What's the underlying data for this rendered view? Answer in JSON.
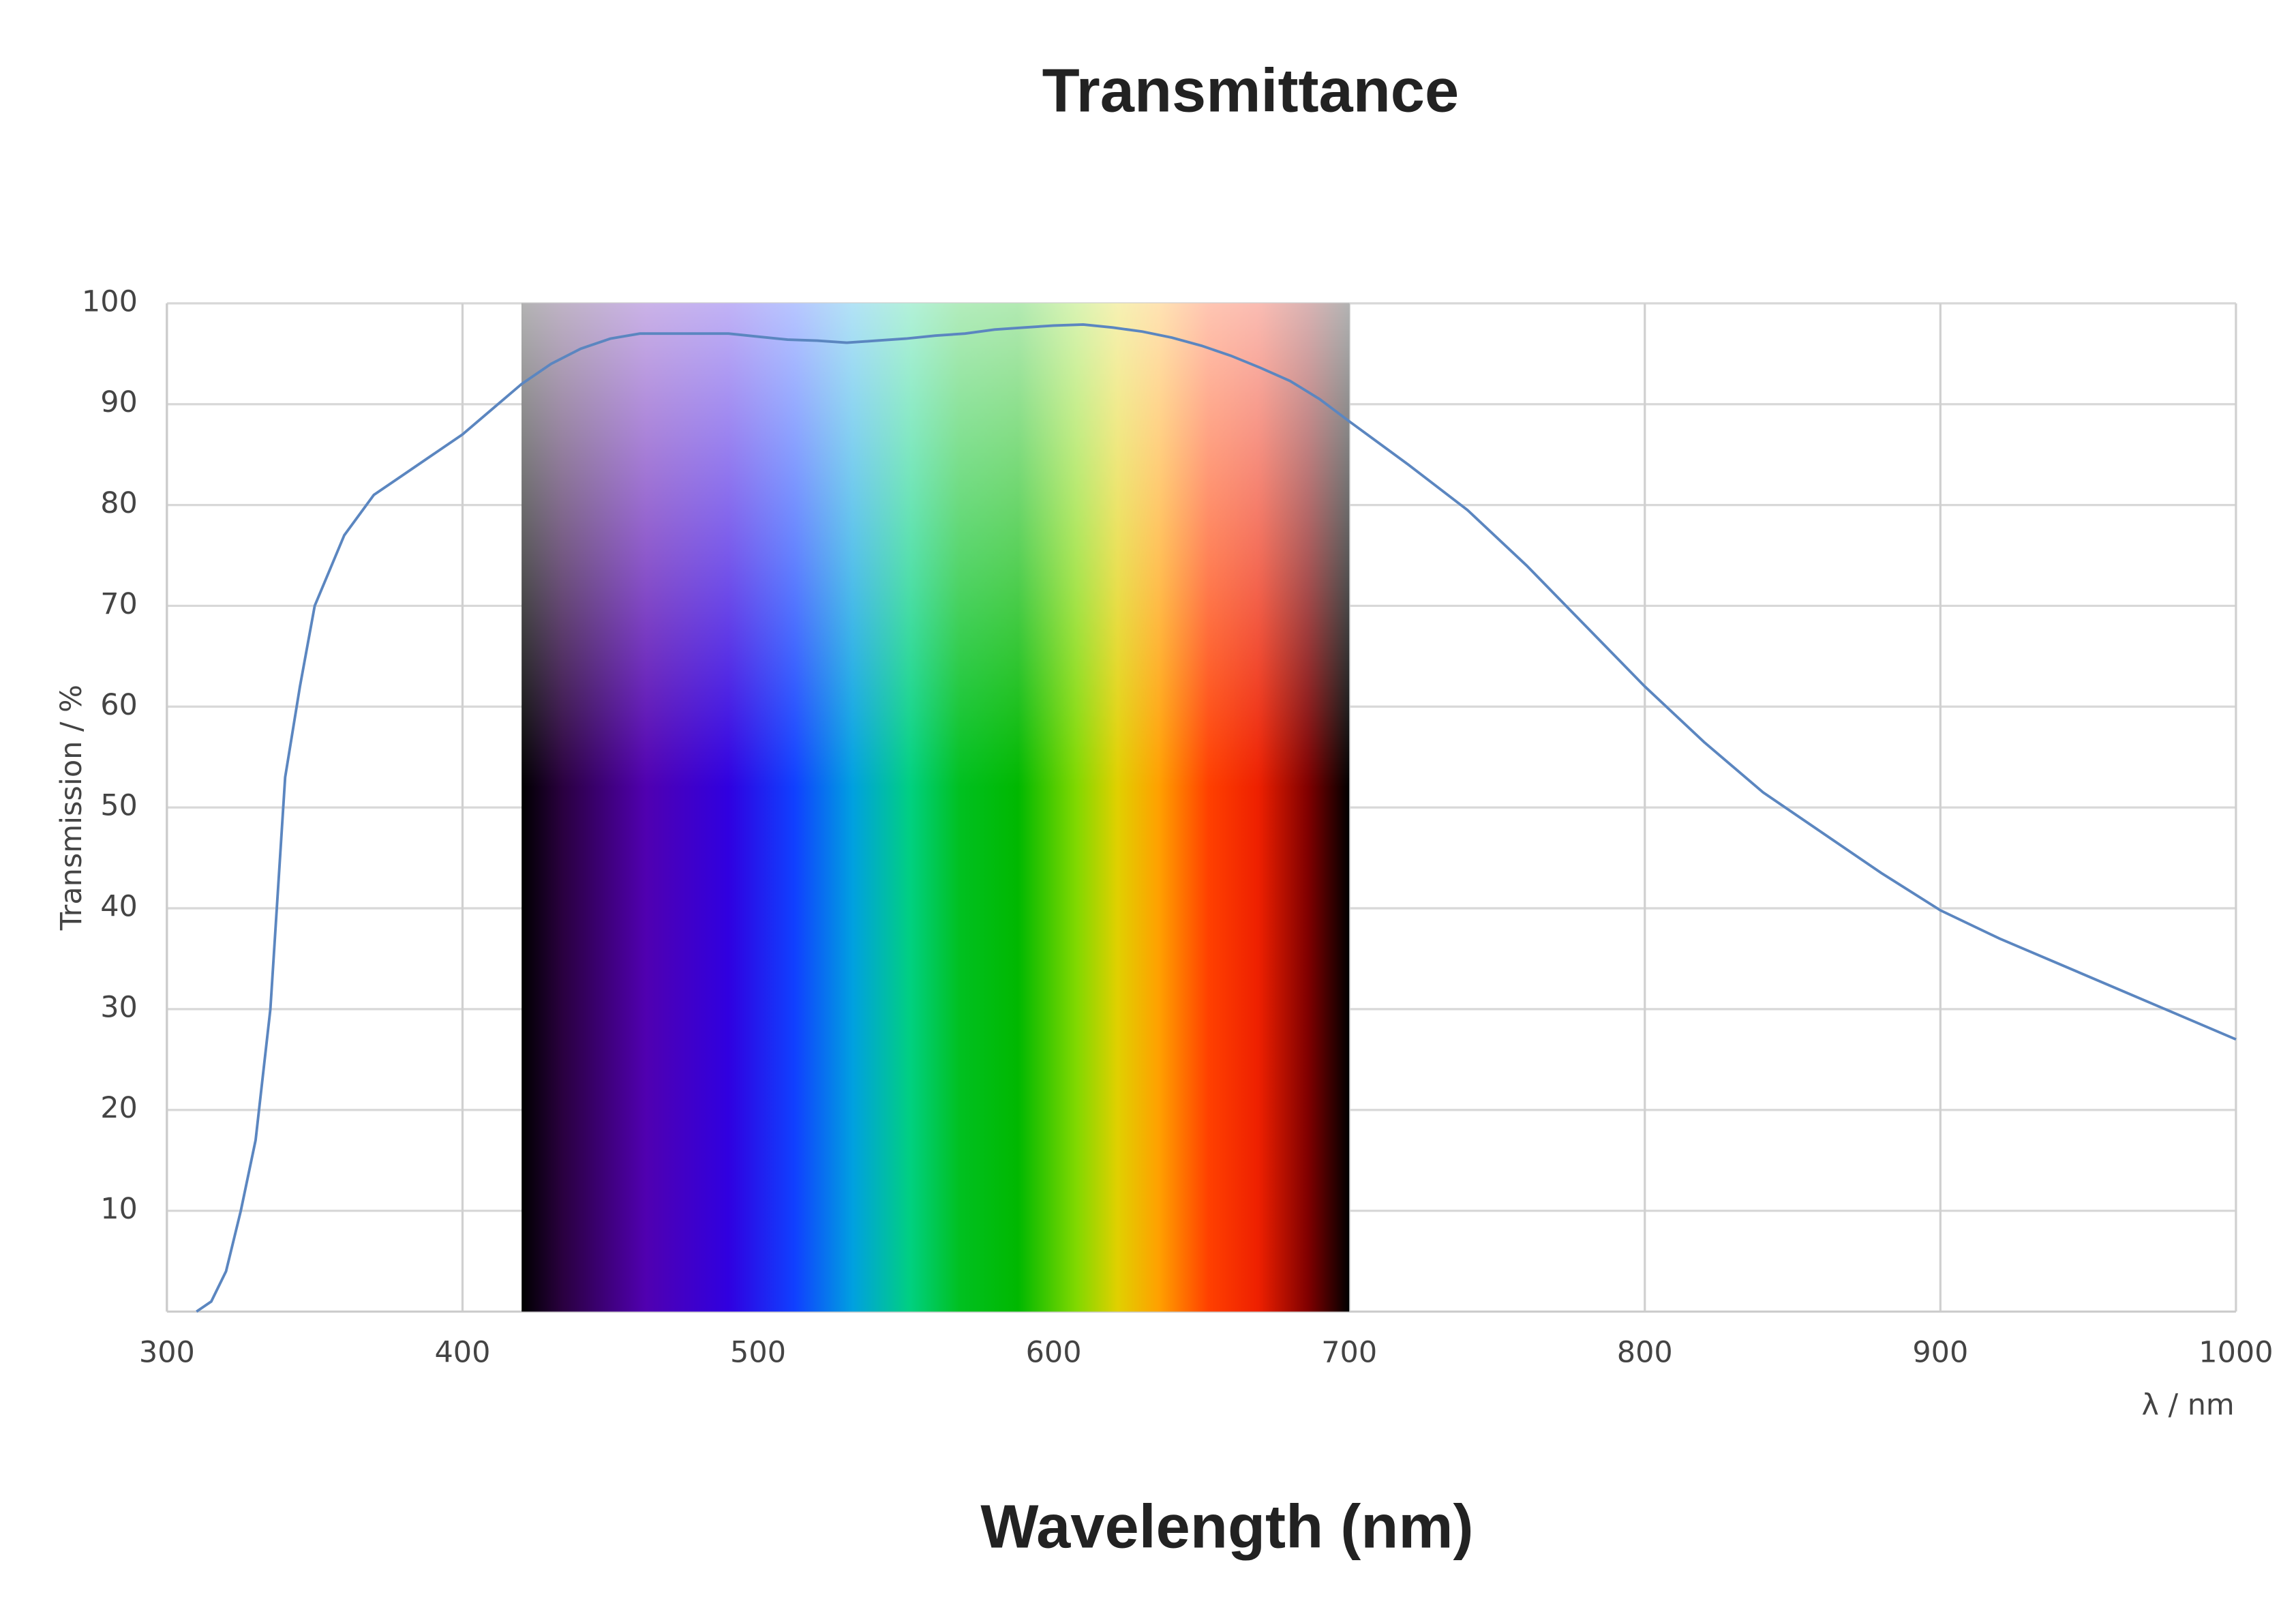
{
  "chart_data": {
    "type": "line",
    "title": "Transmittance",
    "x_label": "Wavelength (nm)",
    "x_unit_label": "λ / nm",
    "y_label": "Transmission / %",
    "x": [
      310,
      315,
      320,
      325,
      330,
      335,
      340,
      345,
      350,
      360,
      370,
      380,
      390,
      400,
      410,
      420,
      430,
      440,
      450,
      460,
      470,
      480,
      490,
      500,
      510,
      520,
      530,
      540,
      550,
      560,
      570,
      580,
      590,
      600,
      610,
      620,
      630,
      640,
      650,
      660,
      670,
      680,
      690,
      700,
      720,
      740,
      760,
      780,
      800,
      820,
      840,
      860,
      880,
      900,
      920,
      940,
      960,
      980,
      1000
    ],
    "values": [
      0,
      1,
      4,
      10,
      17,
      30,
      53,
      62,
      70,
      77,
      81,
      83,
      85,
      87,
      89.5,
      92,
      94,
      95.5,
      96.5,
      97,
      97,
      97,
      97,
      96.7,
      96.4,
      96.3,
      96.1,
      96.3,
      96.5,
      96.8,
      97,
      97.4,
      97.6,
      97.8,
      97.9,
      97.6,
      97.2,
      96.6,
      95.8,
      94.8,
      93.6,
      92.3,
      90.5,
      88.3,
      84,
      79.5,
      74,
      68,
      62,
      56.5,
      51.5,
      47.5,
      43.5,
      39.8,
      37,
      34.5,
      32,
      29.5,
      27
    ],
    "color": "#5b86c0",
    "xlim": [
      300,
      1000
    ],
    "ylim": [
      0,
      100
    ],
    "xticks": [
      300,
      400,
      500,
      600,
      700,
      800,
      900,
      1000
    ],
    "yticks": [
      10,
      20,
      30,
      40,
      50,
      60,
      70,
      80,
      90,
      100
    ],
    "grid": true,
    "highlight_xrange": [
      420,
      700
    ]
  }
}
